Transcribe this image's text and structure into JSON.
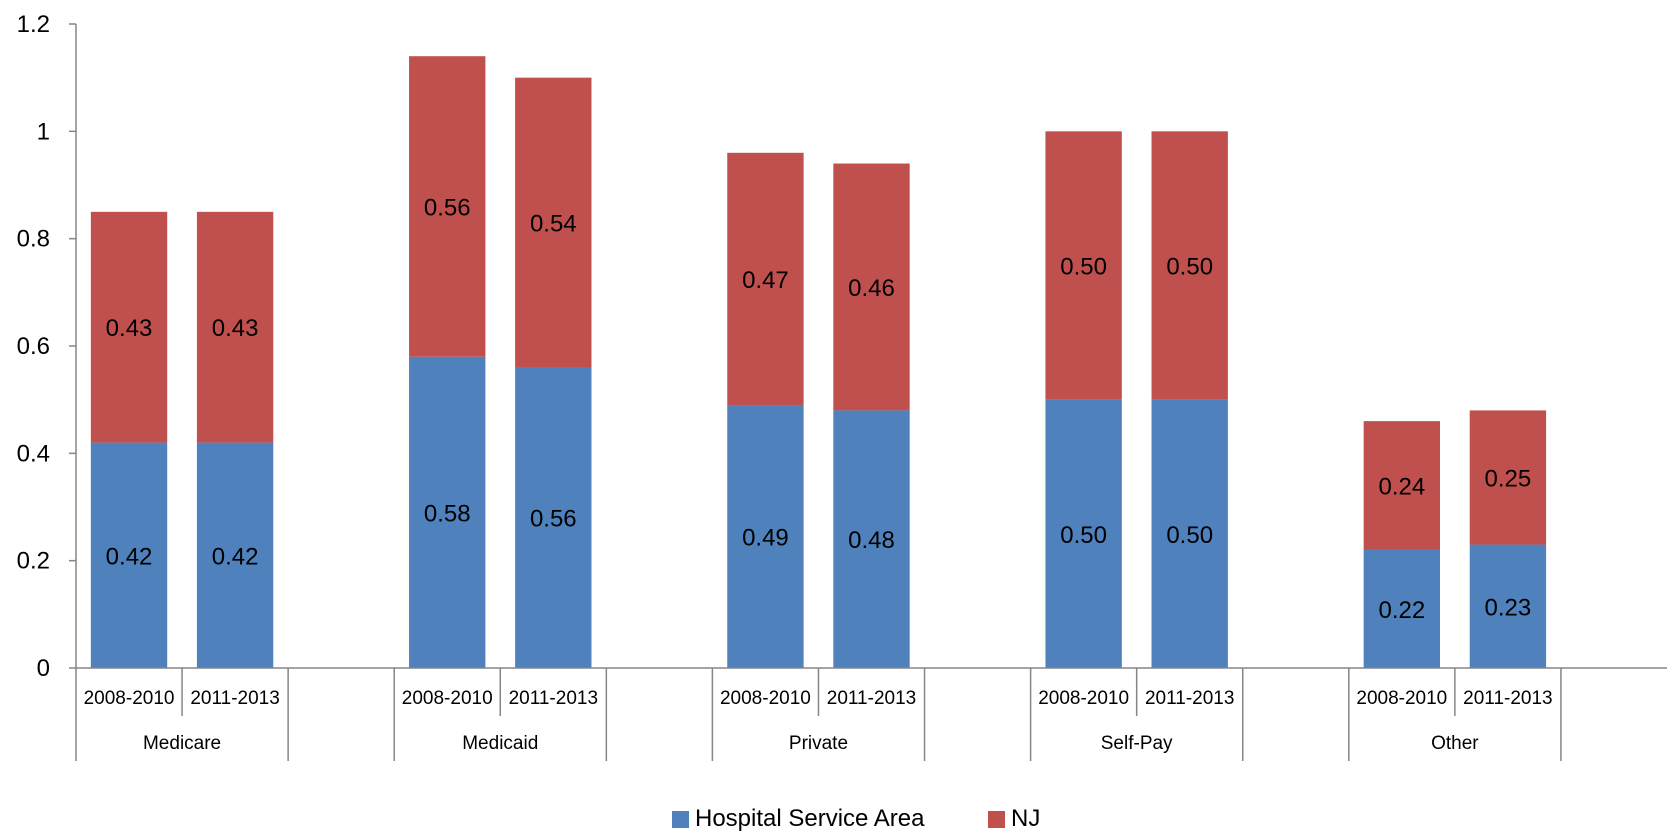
{
  "chart_data": {
    "type": "bar",
    "stacked": true,
    "groups": [
      "Medicare",
      "Medicaid",
      "Private",
      "Self-Pay",
      "Other"
    ],
    "periods": [
      "2008-2010",
      "2011-2013"
    ],
    "categories": [
      "Medicare 2008-2010",
      "Medicare 2011-2013",
      "Medicaid 2008-2010",
      "Medicaid 2011-2013",
      "Private 2008-2010",
      "Private 2011-2013",
      "Self-Pay 2008-2010",
      "Self-Pay 2011-2013",
      "Other 2008-2010",
      "Other 2011-2013"
    ],
    "series": [
      {
        "name": "Hospital Service Area",
        "color": "#4F81BD",
        "values": [
          0.42,
          0.42,
          0.58,
          0.56,
          0.49,
          0.48,
          0.5,
          0.5,
          0.22,
          0.23
        ],
        "labels": [
          "0.42",
          "0.42",
          "0.58",
          "0.56",
          "0.49",
          "0.48",
          "0.50",
          "0.50",
          "0.22",
          "0.23"
        ]
      },
      {
        "name": "NJ",
        "color": "#C0504D",
        "values": [
          0.43,
          0.43,
          0.56,
          0.54,
          0.47,
          0.46,
          0.5,
          0.5,
          0.24,
          0.25
        ],
        "labels": [
          "0.43",
          "0.43",
          "0.56",
          "0.54",
          "0.47",
          "0.46",
          "0.50",
          "0.50",
          "0.24",
          "0.25"
        ]
      }
    ],
    "ylim": [
      0,
      1.2
    ],
    "yticks": [
      "0",
      "0.2",
      "0.4",
      "0.6",
      "0.8",
      "1",
      "1.2"
    ],
    "grid": false,
    "legend_position": "bottom"
  }
}
